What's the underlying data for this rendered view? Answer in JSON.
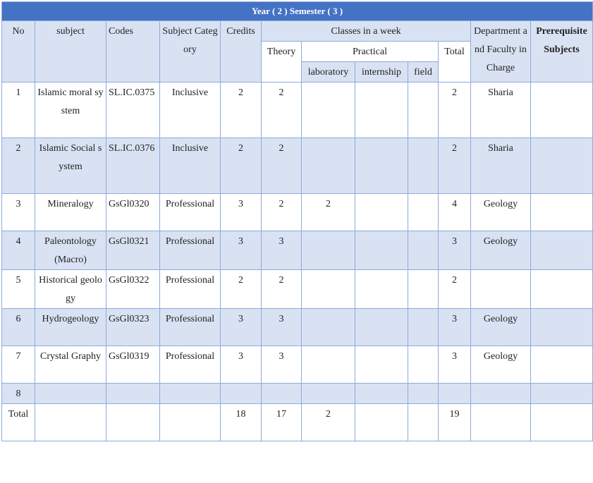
{
  "title": "Year ( 2 )  Semester ( 3 )",
  "headers": {
    "no": "No",
    "subject": "subject",
    "codes": "Codes",
    "category": "Subject Category",
    "credits": "Credits",
    "classes": "Classes in a week",
    "theory": "Theory",
    "practical": "Practical",
    "laboratory": "laboratory",
    "internship": "internship",
    "field": "field",
    "total": "Total",
    "department": "Department and Faculty in Charge",
    "prerequisite": "Prerequisite Subjects"
  },
  "rows": [
    {
      "no": "1",
      "subject": "Islamic moral system",
      "code": "SL.IC.0375",
      "category": "Inclusive",
      "credits": "2",
      "theory": "2",
      "lab": "",
      "intern": "",
      "field": "",
      "total": "2",
      "dept": "Sharia",
      "prereq": ""
    },
    {
      "no": "2",
      "subject": "Islamic Social system",
      "code": "SL.IC.0376",
      "category": "Inclusive",
      "credits": "2",
      "theory": "2",
      "lab": "",
      "intern": "",
      "field": "",
      "total": "2",
      "dept": "Sharia",
      "prereq": ""
    },
    {
      "no": "3",
      "subject": "Mineralogy",
      "code": "GsGl0320",
      "category": "Professional",
      "credits": "3",
      "theory": "2",
      "lab": "2",
      "intern": "",
      "field": "",
      "total": "4",
      "dept": "Geology",
      "prereq": ""
    },
    {
      "no": "4",
      "subject": "Paleontology (Macro)",
      "code": "GsGl0321",
      "category": "Professional",
      "credits": "3",
      "theory": "3",
      "lab": "",
      "intern": "",
      "field": "",
      "total": "3",
      "dept": "Geology",
      "prereq": ""
    },
    {
      "no": "5",
      "subject": "Historical geology",
      "code": "GsGl0322",
      "category": "Professional",
      "credits": "2",
      "theory": "2",
      "lab": "",
      "intern": "",
      "field": "",
      "total": "2",
      "dept": "",
      "prereq": ""
    },
    {
      "no": "6",
      "subject": "Hydrogeology",
      "code": "GsGl0323",
      "category": "Professional",
      "credits": "3",
      "theory": "3",
      "lab": "",
      "intern": "",
      "field": "",
      "total": "3",
      "dept": "Geology",
      "prereq": ""
    },
    {
      "no": "7",
      "subject": "Crystal Graphy",
      "code": "GsGl0319",
      "category": "Professional",
      "credits": "3",
      "theory": "3",
      "lab": "",
      "intern": "",
      "field": "",
      "total": "3",
      "dept": "Geology",
      "prereq": ""
    },
    {
      "no": "8",
      "subject": "",
      "code": "",
      "category": "",
      "credits": "",
      "theory": "",
      "lab": "",
      "intern": "",
      "field": "",
      "total": "",
      "dept": "",
      "prereq": ""
    }
  ],
  "totals": {
    "label": "Total",
    "credits": "18",
    "theory": "17",
    "lab": "2",
    "total": "19"
  }
}
